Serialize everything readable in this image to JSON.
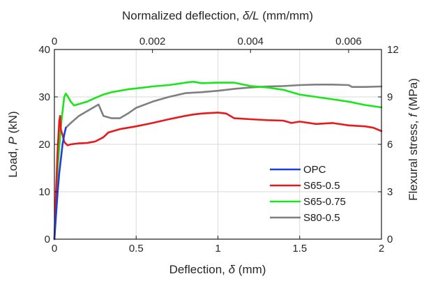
{
  "chart_data": {
    "type": "line",
    "top_label": {
      "pre": "Normalized deflection, ",
      "sym": "δ/L",
      "post": " (mm/mm)"
    },
    "bottom_label": {
      "pre": "Deflection, ",
      "sym": "δ",
      "post": " (mm)"
    },
    "left_label": {
      "pre": "Load, ",
      "sym": "P",
      "post": " (kN)"
    },
    "right_label": {
      "pre": "Flexural stress, ",
      "sym": "f",
      "post": " (MPa)"
    },
    "xlim": [
      0,
      2
    ],
    "ylim": [
      0,
      40
    ],
    "x2lim": [
      0,
      0.00667
    ],
    "y2lim": [
      0,
      12
    ],
    "x_ticks": [
      "0",
      "0.5",
      "1",
      "1.5",
      "2"
    ],
    "y_ticks": [
      "0",
      "10",
      "20",
      "30",
      "40"
    ],
    "x2_ticks": [
      "0",
      "0.002",
      "0.004",
      "0.006"
    ],
    "y2_ticks": [
      "0",
      "3",
      "6",
      "9",
      "12"
    ],
    "grid": true,
    "legend_position": "bottom-right",
    "series": [
      {
        "name": "OPC",
        "color": "#1f3fdc",
        "x": [
          0,
          0.01,
          0.02,
          0.03,
          0.04,
          0.05,
          0.06,
          0.07
        ],
        "y": [
          0,
          5,
          10,
          14,
          17,
          20,
          22,
          23.5
        ]
      },
      {
        "name": "S65-0.5",
        "color": "#e8191b",
        "x": [
          0,
          0.01,
          0.02,
          0.03,
          0.035,
          0.04,
          0.05,
          0.06,
          0.08,
          0.1,
          0.15,
          0.2,
          0.25,
          0.3,
          0.33,
          0.4,
          0.5,
          0.6,
          0.7,
          0.8,
          0.85,
          0.9,
          1.0,
          1.05,
          1.1,
          1.2,
          1.3,
          1.4,
          1.45,
          1.5,
          1.6,
          1.7,
          1.8,
          1.9,
          1.95,
          2.0
        ],
        "y": [
          0,
          10,
          19,
          25,
          26,
          23,
          22,
          20.5,
          19.8,
          20,
          20.2,
          20.3,
          20.6,
          21.5,
          22.5,
          23.2,
          23.8,
          24.5,
          25.3,
          26,
          26.3,
          26.5,
          26.7,
          26.5,
          25.5,
          25.3,
          25.1,
          25,
          24.5,
          24.8,
          24.3,
          24.5,
          24,
          23.8,
          23.5,
          22.8
        ]
      },
      {
        "name": "S65-0.75",
        "color": "#19e619",
        "x": [
          0,
          0.02,
          0.04,
          0.06,
          0.07,
          0.08,
          0.1,
          0.12,
          0.15,
          0.2,
          0.25,
          0.3,
          0.35,
          0.4,
          0.45,
          0.5,
          0.6,
          0.7,
          0.8,
          0.85,
          0.9,
          1.0,
          1.1,
          1.2,
          1.3,
          1.4,
          1.5,
          1.6,
          1.7,
          1.8,
          1.9,
          2.0
        ],
        "y": [
          0,
          15,
          24,
          30,
          30.7,
          30.2,
          29,
          28.2,
          28.5,
          29,
          29.8,
          30.5,
          31,
          31.3,
          31.6,
          31.8,
          32.2,
          32.5,
          33,
          33.2,
          32.9,
          33,
          33,
          32.3,
          32,
          31.5,
          30.5,
          30,
          29.5,
          29,
          28.3,
          27.8
        ]
      },
      {
        "name": "S80-0.5",
        "color": "#7f7f7f",
        "x": [
          0.07,
          0.1,
          0.15,
          0.2,
          0.25,
          0.27,
          0.3,
          0.35,
          0.4,
          0.45,
          0.5,
          0.6,
          0.7,
          0.8,
          0.9,
          1.0,
          1.1,
          1.2,
          1.3,
          1.4,
          1.5,
          1.6,
          1.7,
          1.8,
          1.82,
          1.9,
          2.0
        ],
        "y": [
          23.5,
          24.5,
          26,
          27,
          28,
          28.4,
          26,
          25.5,
          25.5,
          26.5,
          27.7,
          29,
          30,
          30.8,
          31,
          31.3,
          31.7,
          32,
          32.2,
          32.3,
          32.5,
          32.6,
          32.6,
          32.5,
          32.1,
          32.1,
          32.2
        ]
      }
    ]
  }
}
